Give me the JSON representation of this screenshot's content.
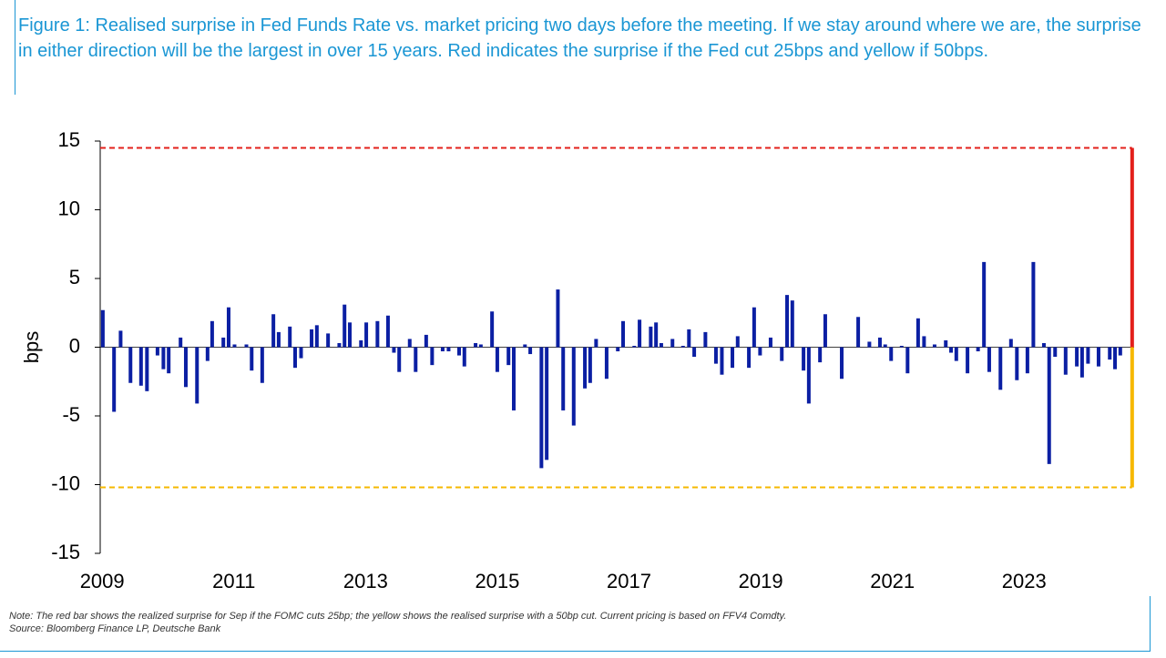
{
  "chart_data": {
    "type": "bar",
    "title": "Figure 1: Realised surprise in Fed Funds Rate vs. market pricing two days before the meeting. If we stay around where we are, the surprise in either direction will be the largest in over 15 years. Red indicates the surprise if the Fed cut 25bps and yellow if 50bps.",
    "ylabel": "bps",
    "note": "Note: The red bar shows the realized surprise for Sep if the FOMC cuts 25bp; the yellow shows the realised surprise with a 50bp cut. Current pricing is based on FFV4 Comdty.",
    "source": "Source: Bloomberg Finance LP, Deutsche Bank",
    "color": "#0b1fa3",
    "x": [
      2009.01,
      2009.18,
      2009.28,
      2009.43,
      2009.59,
      2009.68,
      2009.84,
      2009.93,
      2010.01,
      2010.19,
      2010.27,
      2010.44,
      2010.6,
      2010.67,
      2010.84,
      2010.92,
      2011.01,
      2011.19,
      2011.27,
      2011.43,
      2011.6,
      2011.68,
      2011.85,
      2011.93,
      2012.02,
      2012.18,
      2012.26,
      2012.43,
      2012.6,
      2012.68,
      2012.76,
      2012.93,
      2013.01,
      2013.18,
      2013.34,
      2013.43,
      2013.51,
      2013.67,
      2013.76,
      2013.92,
      2014.01,
      2014.17,
      2014.26,
      2014.42,
      2014.5,
      2014.67,
      2014.75,
      2014.92,
      2015.0,
      2015.17,
      2015.25,
      2015.42,
      2015.5,
      2015.67,
      2015.75,
      2015.92,
      2016.0,
      2016.16,
      2016.33,
      2016.41,
      2016.5,
      2016.66,
      2016.83,
      2016.91,
      2017.08,
      2017.16,
      2017.33,
      2017.41,
      2017.49,
      2017.66,
      2017.82,
      2017.91,
      2017.99,
      2018.16,
      2018.32,
      2018.41,
      2018.57,
      2018.65,
      2018.82,
      2018.9,
      2018.99,
      2019.15,
      2019.32,
      2019.4,
      2019.48,
      2019.65,
      2019.73,
      2019.9,
      2019.98,
      2020.23,
      2020.48,
      2020.65,
      2020.81,
      2020.89,
      2020.98,
      2021.14,
      2021.23,
      2021.39,
      2021.48,
      2021.64,
      2021.81,
      2021.89,
      2021.97,
      2022.14,
      2022.3,
      2022.39,
      2022.47,
      2022.64,
      2022.8,
      2022.89,
      2023.05,
      2023.14,
      2023.3,
      2023.38,
      2023.47,
      2023.63,
      2023.8,
      2023.88,
      2023.97,
      2024.13,
      2024.3,
      2024.38,
      2024.46
    ],
    "values": [
      2.7,
      -4.7,
      1.2,
      -2.6,
      -2.8,
      -3.2,
      -0.6,
      -1.6,
      -1.9,
      0.7,
      -2.9,
      -4.1,
      -1.0,
      1.9,
      0.7,
      2.9,
      0.2,
      0.2,
      -1.7,
      -2.6,
      2.4,
      1.1,
      1.5,
      -1.5,
      -0.8,
      1.3,
      1.6,
      1.0,
      0.3,
      3.1,
      1.8,
      0.5,
      1.8,
      1.9,
      2.3,
      -0.4,
      -1.8,
      0.6,
      -1.8,
      0.9,
      -1.3,
      -0.3,
      -0.3,
      -0.6,
      -1.4,
      0.3,
      0.2,
      2.6,
      -1.8,
      -1.3,
      -4.6,
      0.2,
      -0.5,
      -8.8,
      -8.2,
      4.2,
      -4.6,
      -5.7,
      -3.0,
      -2.6,
      0.6,
      -2.3,
      -0.3,
      1.9,
      0.1,
      2.0,
      1.5,
      1.8,
      0.3,
      0.6,
      0.1,
      1.3,
      -0.7,
      1.1,
      -1.2,
      -2.0,
      -1.5,
      0.8,
      -1.5,
      2.9,
      -0.6,
      0.7,
      -1.0,
      3.8,
      3.4,
      -1.7,
      -4.1,
      -1.1,
      2.4,
      -2.3,
      2.2,
      0.4,
      0.7,
      0.2,
      -1.0,
      0.1,
      -1.9,
      2.1,
      0.8,
      0.2,
      0.5,
      -0.4,
      -1.0,
      -1.9,
      -0.3,
      6.2,
      -1.8,
      -3.1,
      0.6,
      -2.4,
      -1.9,
      6.2,
      0.3,
      -8.5,
      -0.7,
      -2.0,
      -1.4,
      -2.2,
      -1.2,
      -1.4,
      -0.9,
      -1.6,
      -0.6
    ],
    "reference_x": 2024.64,
    "reference_lines": [
      {
        "value": 14.5,
        "color": "#e3201b"
      },
      {
        "value": -10.2,
        "color": "#f6b800"
      }
    ],
    "xlim": [
      2008.97,
      2024.67
    ],
    "xticks": [
      2009,
      2011,
      2013,
      2015,
      2017,
      2019,
      2021,
      2023
    ],
    "ylim": [
      -15,
      15
    ],
    "yticks": [
      -15,
      -10,
      -5,
      0,
      5,
      10,
      15
    ]
  }
}
